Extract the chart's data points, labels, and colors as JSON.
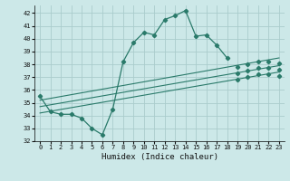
{
  "xlabel": "Humidex (Indice chaleur)",
  "bg_color": "#cce8e8",
  "grid_color": "#aacccc",
  "line_color": "#2a7a6a",
  "xlim": [
    -0.5,
    23.5
  ],
  "ylim": [
    32,
    42.6
  ],
  "yticks": [
    32,
    33,
    34,
    35,
    36,
    37,
    38,
    39,
    40,
    41,
    42
  ],
  "xticks": [
    0,
    1,
    2,
    3,
    4,
    5,
    6,
    7,
    8,
    9,
    10,
    11,
    12,
    13,
    14,
    15,
    16,
    17,
    18,
    19,
    20,
    21,
    22,
    23
  ],
  "main_x": [
    0,
    1,
    2,
    3,
    4,
    5,
    6,
    7,
    8,
    9,
    10,
    11,
    12,
    13,
    14,
    15,
    16,
    17,
    18
  ],
  "main_y": [
    35.5,
    34.3,
    34.1,
    34.1,
    33.8,
    33.0,
    32.5,
    34.5,
    38.2,
    39.7,
    40.5,
    40.3,
    41.5,
    41.8,
    42.2,
    40.2,
    40.3,
    39.5,
    38.5
  ],
  "line1_x": [
    0,
    23
  ],
  "line1_y": [
    35.2,
    38.5
  ],
  "line2_x": [
    0,
    23
  ],
  "line2_y": [
    34.7,
    37.9
  ],
  "line3_x": [
    0,
    23
  ],
  "line3_y": [
    34.2,
    37.4
  ],
  "dot_markers_x": [
    19,
    20,
    21,
    22,
    23
  ],
  "dot_markers_y1": [
    37.8,
    38.0,
    38.2,
    38.2,
    38.1
  ],
  "dot_markers_y2": [
    37.3,
    37.5,
    37.7,
    37.7,
    37.6
  ],
  "dot_markers_y3": [
    36.8,
    37.0,
    37.2,
    37.2,
    37.1
  ]
}
